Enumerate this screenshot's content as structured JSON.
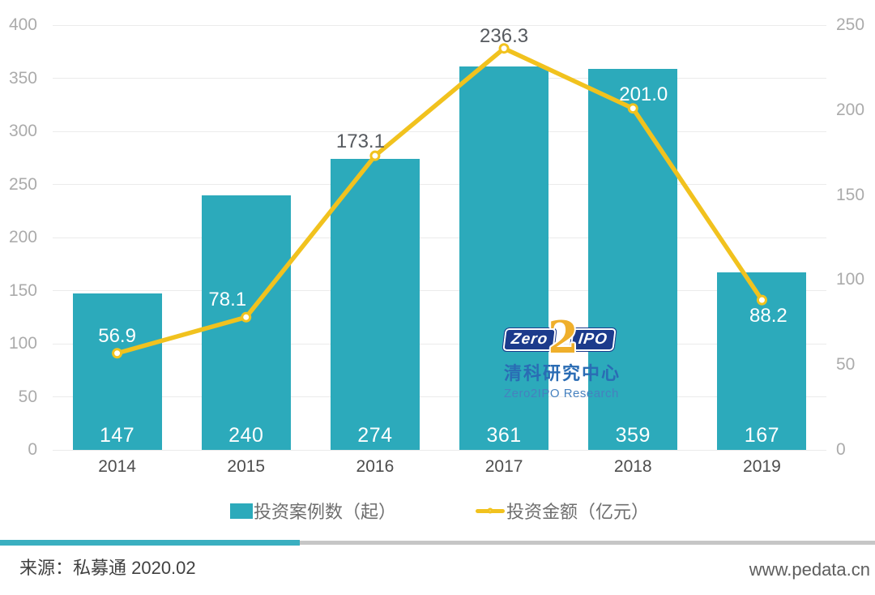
{
  "chart_data": {
    "type": "bar+line",
    "categories": [
      "2014",
      "2015",
      "2016",
      "2017",
      "2018",
      "2019"
    ],
    "series": [
      {
        "name": "投资案例数（起）",
        "type": "bar",
        "axis": "left",
        "values": [
          147,
          240,
          274,
          361,
          359,
          167
        ],
        "value_labels": [
          "147",
          "240",
          "274",
          "361",
          "359",
          "167"
        ]
      },
      {
        "name": "投资金额（亿元）",
        "type": "line",
        "axis": "right",
        "values": [
          56.9,
          78.1,
          173.1,
          236.3,
          201.0,
          88.2
        ],
        "value_labels": [
          "56.9",
          "78.1",
          "173.1",
          "236.3",
          "201.0",
          "88.2"
        ],
        "label_styles": [
          "light",
          "light",
          "dark",
          "dark",
          "light",
          "light"
        ],
        "label_offsets": [
          [
            0,
            -21
          ],
          [
            -23,
            -21
          ],
          [
            -18,
            -17
          ],
          [
            0,
            -15
          ],
          [
            13,
            -17
          ],
          [
            8,
            20
          ]
        ]
      }
    ],
    "left_axis": {
      "min": 0,
      "max": 400,
      "step": 50,
      "ticks": [
        "0",
        "50",
        "100",
        "150",
        "200",
        "250",
        "300",
        "350",
        "400"
      ]
    },
    "right_axis": {
      "min": 0,
      "max": 250,
      "step": 50,
      "ticks": [
        "0",
        "50",
        "100",
        "150",
        "200",
        "250"
      ]
    },
    "grid": true,
    "legend_position": "bottom-center"
  },
  "legend": {
    "items": [
      {
        "label": "投资案例数（起）",
        "marker": "bar-swatch"
      },
      {
        "label": "投资金额（亿元）",
        "marker": "line-swatch"
      }
    ]
  },
  "watermark": {
    "zero": "Zero",
    "two": "2",
    "ipo": "IPO",
    "name_cn": "清科研究中心",
    "name_en": "Zero2IPO Research"
  },
  "footer": {
    "source": "来源：私募通 2020.02",
    "website": "www.pedata.cn"
  },
  "colors": {
    "bar": "#2CAABB",
    "line": "#F1C21E",
    "marker_fill": "#FFFFFF",
    "label_light": "#FFFFFF",
    "label_dark": "#565A5F",
    "grid": "#EBEBEB",
    "tick": "#ABABAB",
    "year": "#4D4D4D",
    "legend_text": "#6E6E6E",
    "divider_teal": "#3AAFC0",
    "divider_gray": "#C6C6C6",
    "logo_navy": "#1C3B8C",
    "logo_yellow": "#EFAF2B",
    "logo_blue": "#2A6CB4",
    "logo_lightblue": "#4681BF",
    "source_text": "#414141",
    "website_text": "#5E5E5E"
  }
}
